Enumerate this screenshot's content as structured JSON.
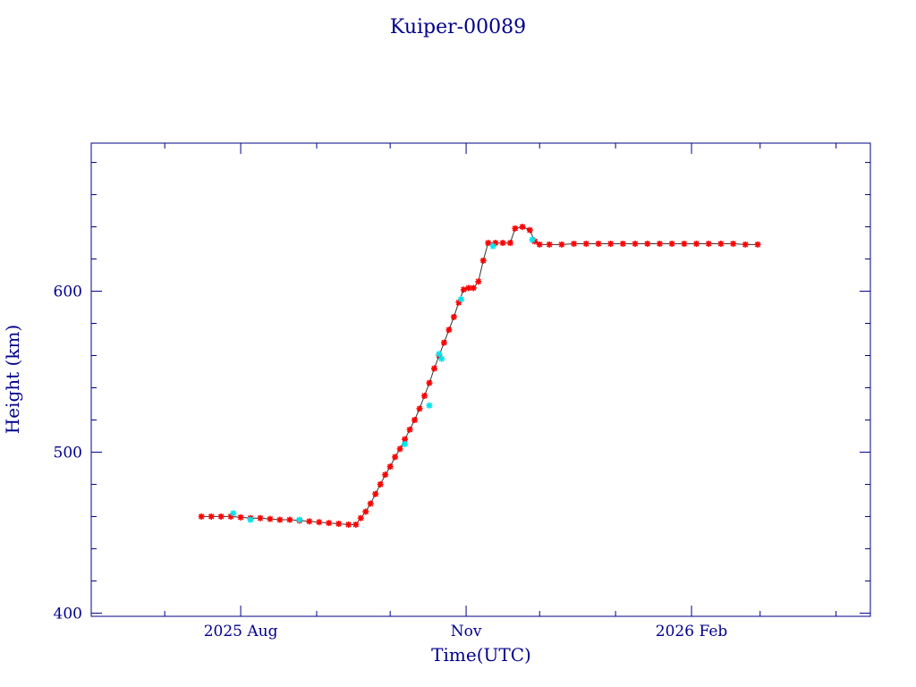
{
  "chart_data": {
    "type": "scatter",
    "title": "Kuiper-00089",
    "xlabel": "Time(UTC)",
    "ylabel": "Height (km)",
    "x_type": "date",
    "xlim": [
      "2025-06-01",
      "2026-04-15"
    ],
    "ylim": [
      398,
      692
    ],
    "x_ticks": [
      {
        "date": "2025-08-01",
        "label": "2025 Aug"
      },
      {
        "date": "2025-11-01",
        "label": "Nov"
      },
      {
        "date": "2026-02-01",
        "label": "2026 Feb"
      }
    ],
    "y_ticks": [
      400,
      500,
      600
    ],
    "grid": false,
    "legend": "none",
    "colors": {
      "axes": "#00008b",
      "primary": "#ff0000",
      "secondary": "#00e5ee",
      "line": "#333333"
    },
    "series": [
      {
        "marker": "star",
        "color": "#ff0000",
        "points": [
          [
            "2025-07-16",
            460
          ],
          [
            "2025-07-20",
            460
          ],
          [
            "2025-07-24",
            460
          ],
          [
            "2025-07-28",
            460
          ],
          [
            "2025-08-01",
            459.5
          ],
          [
            "2025-08-05",
            459
          ],
          [
            "2025-08-09",
            459
          ],
          [
            "2025-08-13",
            458.5
          ],
          [
            "2025-08-17",
            458
          ],
          [
            "2025-08-21",
            458
          ],
          [
            "2025-08-25",
            457.5
          ],
          [
            "2025-08-29",
            457
          ],
          [
            "2025-09-02",
            456.5
          ],
          [
            "2025-09-06",
            456
          ],
          [
            "2025-09-10",
            455.5
          ],
          [
            "2025-09-14",
            455
          ],
          [
            "2025-09-17",
            455
          ],
          [
            "2025-09-19",
            459
          ],
          [
            "2025-09-21",
            463
          ],
          [
            "2025-09-23",
            468
          ],
          [
            "2025-09-25",
            474
          ],
          [
            "2025-09-27",
            480
          ],
          [
            "2025-09-29",
            486
          ],
          [
            "2025-10-01",
            491
          ],
          [
            "2025-10-03",
            497
          ],
          [
            "2025-10-05",
            502
          ],
          [
            "2025-10-07",
            508
          ],
          [
            "2025-10-09",
            514
          ],
          [
            "2025-10-11",
            520
          ],
          [
            "2025-10-13",
            527
          ],
          [
            "2025-10-15",
            535
          ],
          [
            "2025-10-17",
            543
          ],
          [
            "2025-10-19",
            552
          ],
          [
            "2025-10-21",
            560
          ],
          [
            "2025-10-23",
            568
          ],
          [
            "2025-10-25",
            576
          ],
          [
            "2025-10-27",
            584
          ],
          [
            "2025-10-29",
            593
          ],
          [
            "2025-10-31",
            601
          ],
          [
            "2025-11-02",
            602
          ],
          [
            "2025-11-04",
            602
          ],
          [
            "2025-11-06",
            606
          ],
          [
            "2025-11-08",
            619
          ],
          [
            "2025-11-10",
            630
          ],
          [
            "2025-11-13",
            630
          ],
          [
            "2025-11-16",
            630
          ],
          [
            "2025-11-19",
            630
          ],
          [
            "2025-11-21",
            639
          ],
          [
            "2025-11-24",
            640
          ],
          [
            "2025-11-27",
            638
          ],
          [
            "2025-11-29",
            631
          ],
          [
            "2025-12-01",
            629
          ],
          [
            "2025-12-05",
            629
          ],
          [
            "2025-12-10",
            629
          ],
          [
            "2025-12-15",
            629.5
          ],
          [
            "2025-12-20",
            629.5
          ],
          [
            "2025-12-25",
            629.5
          ],
          [
            "2025-12-30",
            629.5
          ],
          [
            "2026-01-04",
            629.5
          ],
          [
            "2026-01-09",
            629.5
          ],
          [
            "2026-01-14",
            629.5
          ],
          [
            "2026-01-19",
            629.5
          ],
          [
            "2026-01-24",
            629.5
          ],
          [
            "2026-01-29",
            629.5
          ],
          [
            "2026-02-03",
            629.5
          ],
          [
            "2026-02-08",
            629.5
          ],
          [
            "2026-02-13",
            629.5
          ],
          [
            "2026-02-18",
            629.5
          ],
          [
            "2026-02-23",
            629
          ],
          [
            "2026-02-28",
            629
          ]
        ]
      },
      {
        "marker": "star",
        "color": "#00e5ee",
        "points": [
          [
            "2025-07-29",
            462
          ],
          [
            "2025-08-05",
            458
          ],
          [
            "2025-08-25",
            458
          ],
          [
            "2025-10-07",
            505
          ],
          [
            "2025-10-17",
            529
          ],
          [
            "2025-10-21",
            561
          ],
          [
            "2025-10-22",
            558
          ],
          [
            "2025-10-30",
            595
          ],
          [
            "2025-11-12",
            628
          ],
          [
            "2025-11-28",
            632
          ]
        ]
      }
    ]
  }
}
